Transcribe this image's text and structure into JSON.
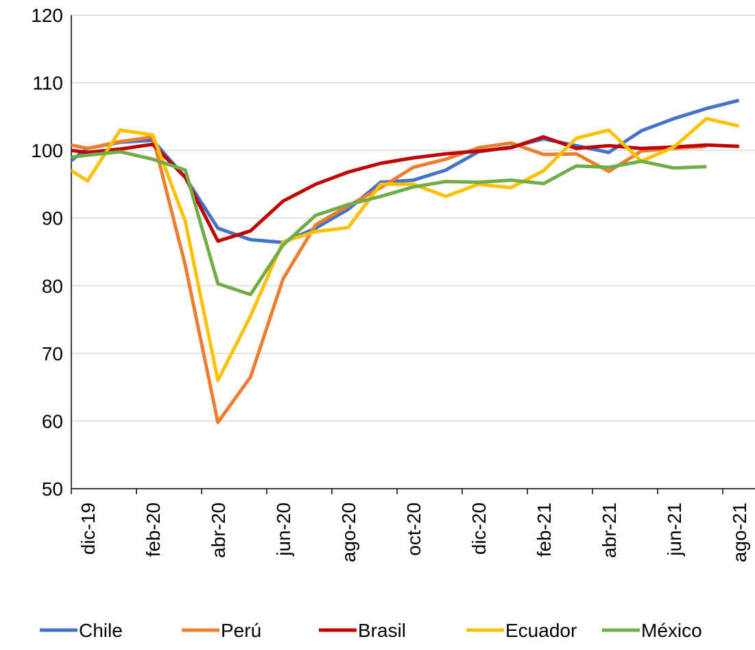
{
  "chart_data": {
    "type": "line",
    "categories": [
      null,
      "dic-19",
      null,
      "feb-20",
      null,
      "abr-20",
      null,
      "jun-20",
      null,
      "ago-20",
      null,
      "oct-20",
      null,
      "dic-20",
      null,
      "feb-21",
      null,
      "abr-21",
      null,
      "jun-21",
      null,
      "ago-21"
    ],
    "series": [
      {
        "name": "Chile",
        "color": "#4472c4",
        "values": [
          96.7,
          100.3,
          101.2,
          101.5,
          96,
          88.5,
          86.8,
          86.4,
          88.5,
          91.3,
          95.3,
          95.6,
          97.1,
          99.8,
          100.5,
          101.7,
          100.7,
          99.7,
          102.9,
          104.7,
          106.2,
          107.4
        ]
      },
      {
        "name": "Perú",
        "color": "#ed7d31",
        "values": [
          101.3,
          100.3,
          101.3,
          102,
          83,
          59.8,
          66.5,
          81,
          89,
          91.8,
          94.5,
          97.5,
          98.7,
          100.4,
          101.1,
          99.4,
          99.5,
          96.9,
          99.9,
          100.3,
          100.6,
          null
        ]
      },
      {
        "name": "Brasil",
        "color": "#c00000",
        "values": [
          100.3,
          99.7,
          100.2,
          100.9,
          96,
          86.6,
          88.1,
          92.5,
          95,
          96.8,
          98.1,
          98.9,
          99.5,
          99.9,
          100.4,
          102,
          100.3,
          100.7,
          100.3,
          100.5,
          100.8,
          100.6
        ]
      },
      {
        "name": "Ecuador",
        "color": "#ffc000",
        "values": [
          98.5,
          95.5,
          103,
          102.3,
          89.5,
          66,
          75.5,
          86.5,
          88,
          88.6,
          95,
          95,
          93.2,
          95,
          94.5,
          97,
          101.8,
          103,
          98.4,
          100.5,
          104.7,
          103.6
        ]
      },
      {
        "name": "México",
        "color": "#70ad47",
        "values": [
          98.7,
          99.3,
          99.8,
          98.7,
          97.1,
          80.3,
          78.7,
          86,
          90.4,
          92,
          93.2,
          94.6,
          95.4,
          95.3,
          95.6,
          95.1,
          97.7,
          97.5,
          98.4,
          97.4,
          97.6,
          null
        ]
      }
    ],
    "ylim": [
      50,
      120
    ],
    "yticks": [
      50,
      60,
      70,
      80,
      90,
      100,
      110,
      120
    ],
    "grid": true,
    "legend": "bottom"
  }
}
